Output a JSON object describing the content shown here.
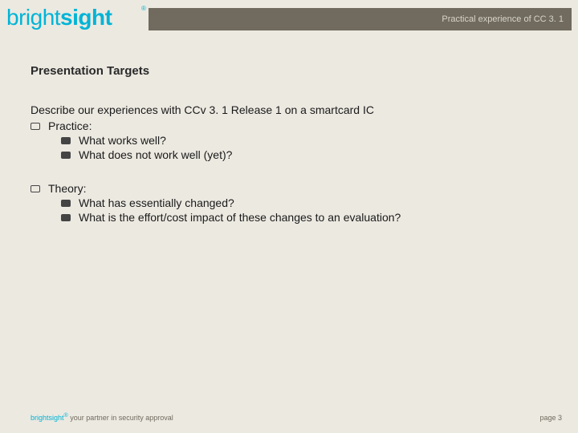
{
  "header": {
    "subtitle": "Practical experience of CC 3. 1"
  },
  "logo": {
    "part1": "bright",
    "part2": "sight",
    "registered": "®"
  },
  "slide": {
    "title": "Presentation Targets",
    "lead": "Describe our experiences with CCv 3. 1 Release 1 on a smartcard IC",
    "sections": [
      {
        "label": "Practice:",
        "items": [
          "What works well?",
          "What does not work well (yet)?"
        ]
      },
      {
        "label": "Theory:",
        "items": [
          "What has essentially changed?",
          "What is the effort/cost impact of these changes to an evaluation?"
        ]
      }
    ]
  },
  "footer": {
    "brand": "brightsight",
    "registered": "®",
    "tagline": " your partner in security approval",
    "page": "page 3"
  },
  "colors": {
    "background": "#ece9e1",
    "header_bar": "#706a5f",
    "accent": "#00b4d6",
    "text": "#1a1a1a"
  }
}
